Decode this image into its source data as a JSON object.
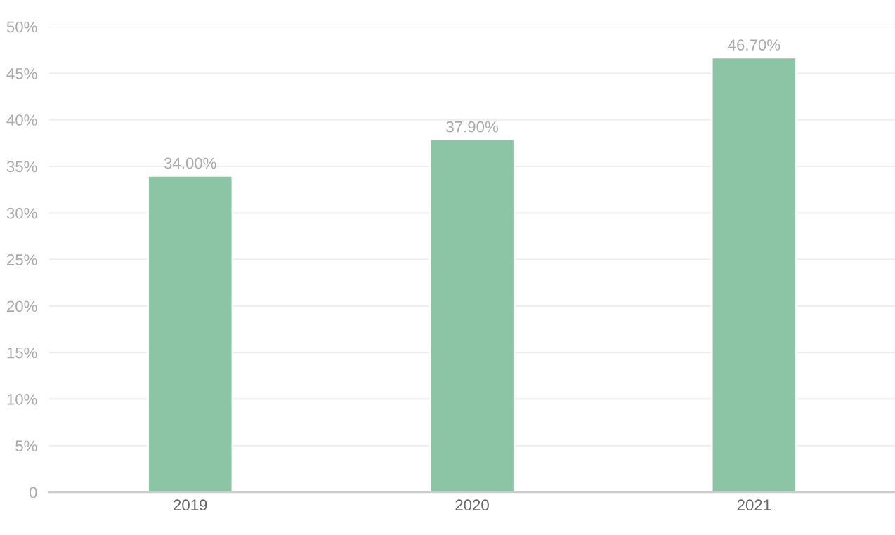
{
  "chart_data": {
    "type": "bar",
    "categories": [
      "2019",
      "2020",
      "2021"
    ],
    "values": [
      34.0,
      37.9,
      46.7
    ],
    "value_labels": [
      "34.00%",
      "37.90%",
      "46.70%"
    ],
    "color": "#8cc4a6",
    "ylim": [
      0,
      50
    ],
    "yticks": [
      {
        "value": 0,
        "label": "0"
      },
      {
        "value": 5,
        "label": "5%"
      },
      {
        "value": 10,
        "label": "10%"
      },
      {
        "value": 15,
        "label": "15%"
      },
      {
        "value": 20,
        "label": "20%"
      },
      {
        "value": 25,
        "label": "25%"
      },
      {
        "value": 30,
        "label": "30%"
      },
      {
        "value": 35,
        "label": "35%"
      },
      {
        "value": 40,
        "label": "40%"
      },
      {
        "value": 45,
        "label": "45%"
      },
      {
        "value": 50,
        "label": "50%"
      }
    ],
    "grid": "y"
  }
}
